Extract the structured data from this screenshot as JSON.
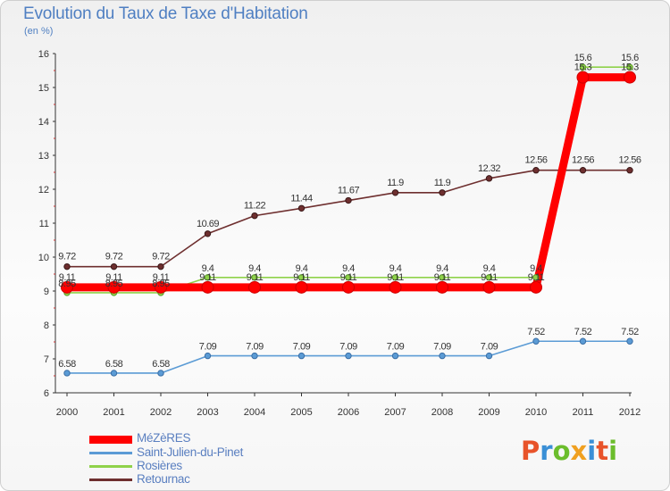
{
  "header": {
    "title": "Evolution du Taux de Taxe d'Habitation",
    "unit_note": "(en %)"
  },
  "logo": {
    "text": "Proxiti",
    "letter_colors": [
      "#e8532a",
      "#3a8fd6",
      "#6bbd2c",
      "#f0a020",
      "#3a8fd6",
      "#e8532a",
      "#6bbd2c"
    ]
  },
  "chart_data": {
    "type": "line",
    "categories": [
      "2000",
      "2001",
      "2002",
      "2003",
      "2004",
      "2005",
      "2006",
      "2007",
      "2008",
      "2009",
      "2010",
      "2011",
      "2012"
    ],
    "y_ticks": [
      6,
      7,
      8,
      9,
      10,
      11,
      12,
      13,
      14,
      15,
      16
    ],
    "y_tick_labels": [
      "6",
      "7",
      "8",
      "9",
      "10",
      "11",
      "12",
      "13",
      "14",
      "15",
      "16"
    ],
    "ylim": [
      6,
      16
    ],
    "grid": false,
    "legend_position": "bottom-left",
    "series": [
      {
        "name": "Saint-Julien-du-Pinet",
        "color": "#5b9bd5",
        "values": [
          6.58,
          6.58,
          6.58,
          7.09,
          7.09,
          7.09,
          7.09,
          7.09,
          7.09,
          7.09,
          7.52,
          7.52,
          7.52
        ],
        "labels": [
          "6.58",
          "6.58",
          "6.58",
          "7.09",
          "7.09",
          "7.09",
          "7.09",
          "7.09",
          "7.09",
          "7.09",
          "7.52",
          "7.52",
          "7.52"
        ]
      },
      {
        "name": "Rosières",
        "color": "#8fd24a",
        "values": [
          8.95,
          8.95,
          8.95,
          9.4,
          9.4,
          9.4,
          9.4,
          9.4,
          9.4,
          9.4,
          9.4,
          15.6,
          15.6
        ],
        "labels": [
          "8.95",
          "8.95",
          "8.95",
          "9.4",
          "9.4",
          "9.4",
          "9.4",
          "9.4",
          "9.4",
          "9.4",
          "9.4",
          "15.6",
          "15.6"
        ]
      },
      {
        "name": "Retournac",
        "color": "#6e2f2f",
        "values": [
          9.72,
          9.72,
          9.72,
          10.69,
          11.22,
          11.44,
          11.67,
          11.9,
          11.9,
          12.32,
          12.56,
          12.56,
          12.56
        ],
        "labels": [
          "9.72",
          "9.72",
          "9.72",
          "10.69",
          "11.22",
          "11.44",
          "11.67",
          "11.9",
          "11.9",
          "12.32",
          "12.56",
          "12.56",
          "12.56"
        ]
      },
      {
        "name": "MéZèRES",
        "color": "#ff0000",
        "values": [
          9.11,
          9.11,
          9.11,
          9.11,
          9.11,
          9.11,
          9.11,
          9.11,
          9.11,
          9.11,
          9.11,
          15.3,
          15.3
        ],
        "labels": [
          "9.11",
          "9.11",
          "9.11",
          "9.11",
          "9.11",
          "9.11",
          "9.11",
          "9.11",
          "9.11",
          "9.11",
          "9.11",
          "15.3",
          "15.3"
        ]
      }
    ]
  },
  "legend": {
    "items": [
      {
        "label": "MéZèRES",
        "color": "#ff0000"
      },
      {
        "label": "Saint-Julien-du-Pinet",
        "color": "#5b9bd5"
      },
      {
        "label": "Rosières",
        "color": "#8fd24a"
      },
      {
        "label": "Retournac",
        "color": "#6e2f2f"
      }
    ]
  }
}
